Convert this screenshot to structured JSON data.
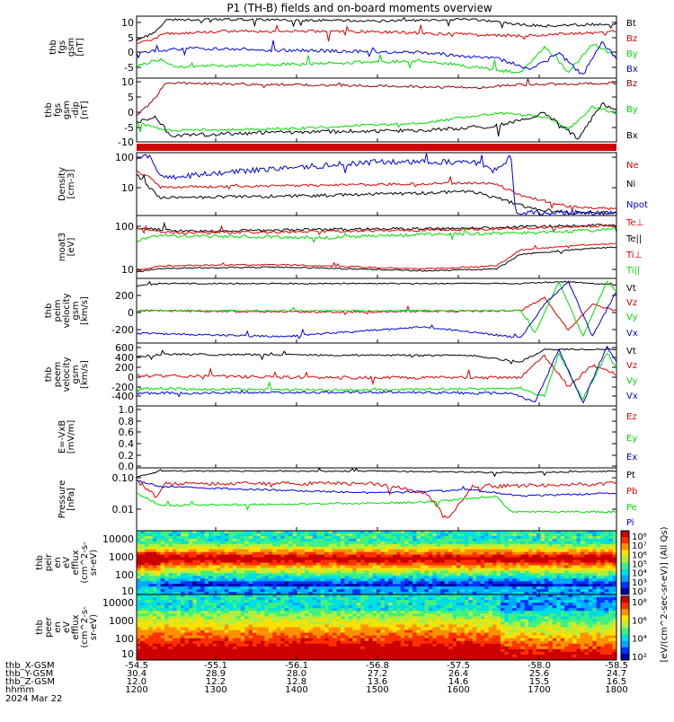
{
  "title": "P1 (TH-B) fields and on-board moments overview",
  "colors": {
    "black": "#000000",
    "red": "#e00000",
    "green": "#00dd00",
    "blue": "#0000dd",
    "darkred": "#990000",
    "hot": "#cc0000"
  },
  "panels": [
    {
      "ylabel": [
        "thb",
        "fgs",
        "gsm",
        "[nT]"
      ],
      "yticks": [
        "10",
        "5",
        "0",
        "-5"
      ],
      "legend": [
        {
          "text": "Bt",
          "color": "#000000"
        },
        {
          "text": "Bz",
          "color": "#e00000"
        },
        {
          "text": "By",
          "color": "#00dd00"
        },
        {
          "text": "Bx",
          "color": "#0000dd"
        }
      ]
    },
    {
      "ylabel": [
        "thb",
        "fgs",
        "gsm",
        "-dip",
        "[nT]"
      ],
      "yticks": [
        "10",
        "5",
        "0",
        "-5",
        "-10"
      ],
      "legend": [
        {
          "text": "Bz",
          "color": "#990000"
        },
        {
          "text": "By",
          "color": "#00dd00"
        },
        {
          "text": "Bx",
          "color": "#000000"
        }
      ]
    },
    {
      "ylabel": [
        "Density",
        "[cm-3]"
      ],
      "yticks": [
        "100",
        "10"
      ],
      "legend": [
        {
          "text": "Ne",
          "color": "#e00000"
        },
        {
          "text": "Ni",
          "color": "#000000"
        },
        {
          "text": "Npot",
          "color": "#0000dd"
        }
      ]
    },
    {
      "ylabel": [
        "moat3",
        "[eV]"
      ],
      "yticks": [
        "100",
        "10"
      ],
      "legend": [
        {
          "text": "Te⊥",
          "color": "#e00000"
        },
        {
          "text": "Te||",
          "color": "#000000"
        },
        {
          "text": "Ti⊥",
          "color": "#e00000"
        },
        {
          "text": "Ti||",
          "color": "#00dd00"
        }
      ]
    },
    {
      "ylabel": [
        "thb",
        "peim",
        "velocity",
        "gsm",
        "[km/s]"
      ],
      "yticks": [
        "200",
        "0",
        "-200"
      ],
      "legend": [
        {
          "text": "Vt",
          "color": "#000000"
        },
        {
          "text": "Vz",
          "color": "#e00000"
        },
        {
          "text": "Vy",
          "color": "#00dd00"
        },
        {
          "text": "Vx",
          "color": "#0000dd"
        }
      ]
    },
    {
      "ylabel": [
        "thb",
        "peem",
        "velocity",
        "gsm",
        "[km/s]"
      ],
      "yticks": [
        "600",
        "400",
        "200",
        "0",
        "-200",
        "-400"
      ],
      "legend": [
        {
          "text": "Vt",
          "color": "#000000"
        },
        {
          "text": "Vz",
          "color": "#e00000"
        },
        {
          "text": "Vy",
          "color": "#00dd00"
        },
        {
          "text": "Vx",
          "color": "#0000dd"
        }
      ]
    },
    {
      "ylabel": [
        "E=-VxB",
        "[mV/m]"
      ],
      "yticks": [
        "1.0",
        "0.8",
        "0.6",
        "0.4",
        "0.2",
        "0.0"
      ],
      "legend": [
        {
          "text": "Ez",
          "color": "#e00000"
        },
        {
          "text": "Ey",
          "color": "#00dd00"
        },
        {
          "text": "Ex",
          "color": "#0000dd"
        }
      ]
    },
    {
      "ylabel": [
        "Pressure",
        "[nPa]"
      ],
      "yticks": [
        "0.10",
        "0.01"
      ],
      "legend": [
        {
          "text": "Pt",
          "color": "#000000"
        },
        {
          "text": "Pb",
          "color": "#e00000"
        },
        {
          "text": "Pe",
          "color": "#00dd00"
        },
        {
          "text": "Pi",
          "color": "#0000dd"
        }
      ]
    },
    {
      "ylabel": [
        "thb",
        "peir",
        "en",
        "eV",
        "efflux",
        "(cm^2-s-",
        "sr-eV)"
      ],
      "yticks": [
        "10000",
        "1000",
        "100",
        "10"
      ]
    },
    {
      "ylabel": [
        "thb",
        "peer",
        "en",
        "eV",
        "efflux",
        "(cm^2-s-",
        "sr-eV)"
      ],
      "yticks": [
        "10000",
        "1000",
        "100",
        "10"
      ]
    }
  ],
  "colorbar": {
    "label": "[eV/(cm^2-sec-sr-eV)] (All Qs)",
    "ticks_upper": [
      "10⁸",
      "10⁷",
      "10⁶",
      "10⁵",
      "10⁴",
      "10³",
      "10²"
    ],
    "ticks_lower": [
      "10⁸",
      "10⁶",
      "10⁴",
      "10²"
    ]
  },
  "xaxis": {
    "rows": [
      {
        "label": "thb_X-GSM",
        "values": [
          "-54.5",
          "-55.1",
          "-56.1",
          "-56.8",
          "-57.5",
          "-58.0",
          "-58.5"
        ]
      },
      {
        "label": "thb_Y-GSM",
        "values": [
          "30.4",
          "28.9",
          "28.0",
          "27.2",
          "26.4",
          "25.6",
          "24.7"
        ]
      },
      {
        "label": "thb_Z-GSM",
        "values": [
          "12.0",
          "12.2",
          "12.8",
          "13.6",
          "14.6",
          "15.5",
          "16.5"
        ]
      },
      {
        "label": "hhmm",
        "values": [
          "1200",
          "1300",
          "1400",
          "1500",
          "1600",
          "1700",
          "1800"
        ]
      }
    ],
    "date": "2024 Mar 22"
  },
  "chart_data": {
    "type": "line",
    "title": "P1 (TH-B) fields and on-board moments overview",
    "x": [
      "1200",
      "1300",
      "1400",
      "1500",
      "1600",
      "1700",
      "1800"
    ],
    "xlabel": "hhmm",
    "panels": [
      {
        "ylabel": "thb fgs gsm [nT]",
        "ylim": [
          -8,
          12
        ],
        "series": [
          {
            "name": "Bt",
            "values": [
              3,
              9,
              9,
              9,
              9,
              8,
              10
            ]
          },
          {
            "name": "Bz",
            "values": [
              6,
              7,
              7,
              7,
              6,
              5,
              7
            ]
          },
          {
            "name": "By",
            "values": [
              -2,
              -4,
              -4,
              -3,
              -2,
              -5,
              -3
            ]
          },
          {
            "name": "Bx",
            "values": [
              0,
              1,
              1,
              0,
              1,
              -3,
              -5
            ]
          }
        ]
      },
      {
        "ylabel": "thb fgs gsm-dip [nT]",
        "ylim": [
          -12,
          11
        ],
        "series": [
          {
            "name": "Bz",
            "values": [
              2,
              9,
              9,
              9,
              8,
              8,
              8
            ]
          },
          {
            "name": "By",
            "values": [
              -3,
              -6,
              -6,
              -4,
              -2,
              -2,
              -1
            ]
          },
          {
            "name": "Bx",
            "values": [
              -8,
              -5,
              -7,
              -8,
              -8,
              -7,
              -9
            ]
          }
        ]
      },
      {
        "ylabel": "Density [cm-3]",
        "ylim": [
          2,
          100
        ],
        "series": [
          {
            "name": "Ne",
            "values": [
              7,
              8,
              8,
              8,
              8,
              3,
              3
            ]
          },
          {
            "name": "Ni",
            "values": [
              6,
              4,
              4,
              5,
              6,
              2,
              2
            ]
          },
          {
            "name": "Npot",
            "values": [
              60,
              25,
              35,
              60,
              80,
              2,
              2
            ]
          }
        ]
      },
      {
        "ylabel": "moat3 [eV]",
        "ylim": [
          5,
          200
        ],
        "series": [
          {
            "name": "Te⊥",
            "values": [
              70,
              80,
              85,
              90,
              95,
              100,
              100
            ]
          },
          {
            "name": "Te||",
            "values": [
              70,
              80,
              85,
              90,
              95,
              100,
              110
            ]
          },
          {
            "name": "Ti⊥",
            "values": [
              9,
              12,
              13,
              12,
              10,
              18,
              25
            ]
          },
          {
            "name": "Ti||",
            "values": [
              60,
              65,
              70,
              75,
              80,
              85,
              90
            ]
          }
        ]
      },
      {
        "ylabel": "thb peim velocity gsm [km/s]",
        "ylim": [
          -320,
          330
        ],
        "series": [
          {
            "name": "Vt",
            "values": [
              250,
              300,
              300,
              300,
              300,
              300,
              300
            ]
          },
          {
            "name": "Vz",
            "values": [
              0,
              0,
              0,
              0,
              0,
              0,
              0
            ]
          },
          {
            "name": "Vy",
            "values": [
              0,
              0,
              0,
              0,
              0,
              0,
              200
            ]
          },
          {
            "name": "Vx",
            "values": [
              -200,
              -220,
              -220,
              -200,
              -230,
              -200,
              100
            ]
          }
        ]
      },
      {
        "ylabel": "thb peem velocity gsm [km/s]",
        "ylim": [
          -450,
          620
        ],
        "series": [
          {
            "name": "Vt",
            "values": [
              350,
              400,
              380,
              380,
              380,
              350,
              500
            ]
          },
          {
            "name": "Vz",
            "values": [
              0,
              0,
              0,
              0,
              0,
              0,
              0
            ]
          },
          {
            "name": "Vy",
            "values": [
              -150,
              -150,
              -150,
              -150,
              -150,
              -100,
              200
            ]
          },
          {
            "name": "Vx",
            "values": [
              -300,
              -300,
              -300,
              -300,
              -300,
              -300,
              0
            ]
          }
        ]
      },
      {
        "ylabel": "E=-VxB [mV/m]",
        "ylim": [
          0,
          1
        ],
        "series": [
          {
            "name": "Ez",
            "values": []
          },
          {
            "name": "Ey",
            "values": []
          },
          {
            "name": "Ex",
            "values": []
          }
        ]
      },
      {
        "ylabel": "Pressure [nPa]",
        "ylim": [
          0.004,
          0.15
        ],
        "series": [
          {
            "name": "Pt",
            "values": [
              0.09,
              0.1,
              0.1,
              0.1,
              0.09,
              0.09,
              0.1
            ]
          },
          {
            "name": "Pb",
            "values": [
              0.05,
              0.05,
              0.05,
              0.045,
              0.01,
              0.05,
              0.05
            ]
          },
          {
            "name": "Pe",
            "values": [
              0.015,
              0.017,
              0.017,
              0.018,
              0.02,
              0.01,
              0.01
            ]
          },
          {
            "name": "Pi",
            "values": [
              0.03,
              0.035,
              0.035,
              0.035,
              0.03,
              0.03,
              0.03
            ]
          }
        ]
      }
    ]
  }
}
